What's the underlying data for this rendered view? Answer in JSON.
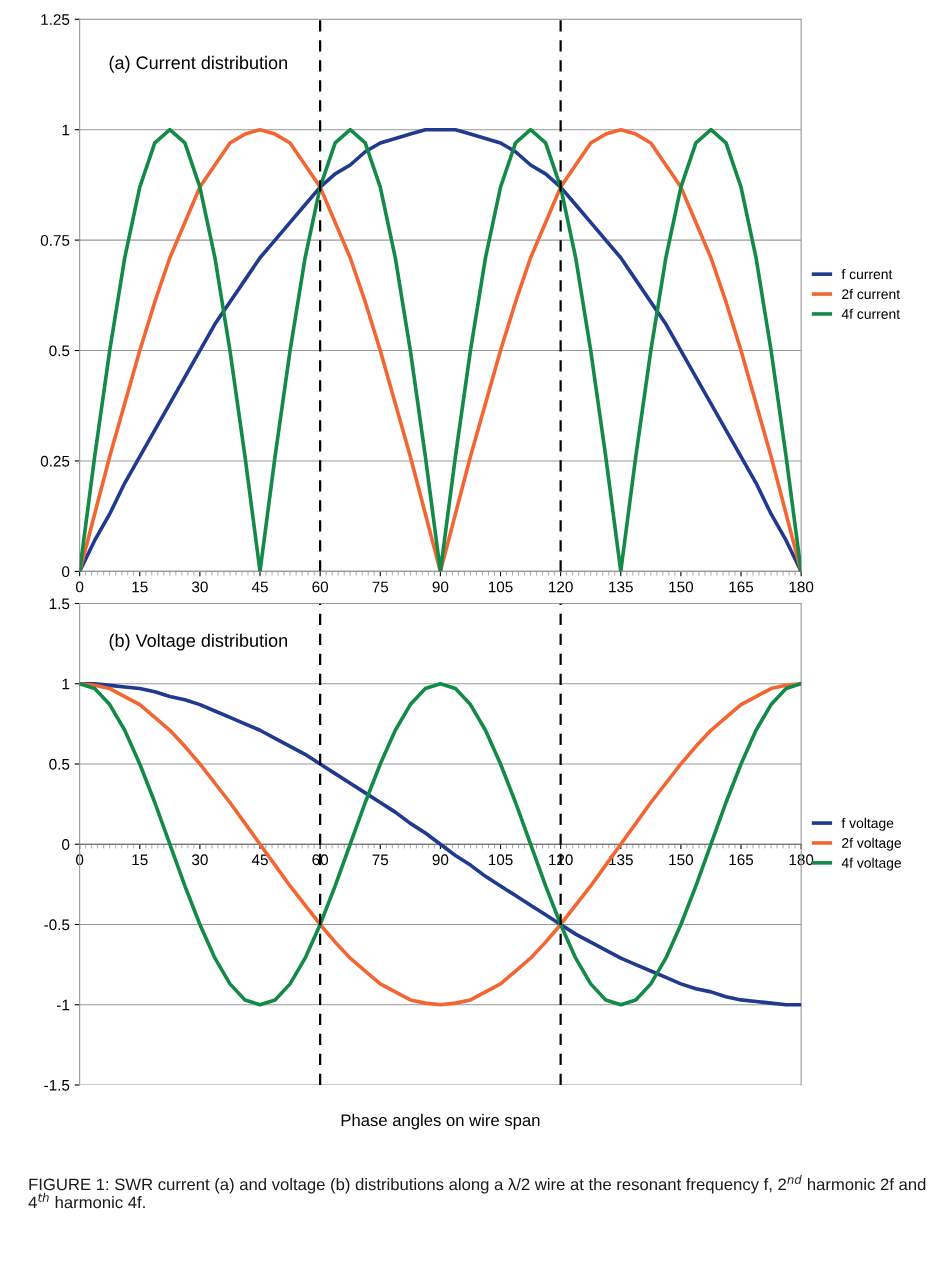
{
  "chart_data": [
    {
      "type": "line",
      "title": "(a) Current distribution",
      "x": [
        0,
        3.75,
        7.5,
        11.25,
        15,
        18.75,
        22.5,
        26.25,
        30,
        33.75,
        37.5,
        41.25,
        45,
        48.75,
        52.5,
        56.25,
        60,
        63.75,
        67.5,
        71.25,
        75,
        78.75,
        82.5,
        86.25,
        90,
        93.75,
        97.5,
        101.25,
        105,
        108.75,
        112.5,
        116.25,
        120,
        123.75,
        127.5,
        131.25,
        135,
        138.75,
        142.5,
        146.25,
        150,
        153.75,
        157.5,
        161.25,
        165,
        168.75,
        172.5,
        176.25,
        180
      ],
      "series": [
        {
          "name": "f current",
          "color": "#1f3a8f",
          "values": [
            0,
            0.07,
            0.13,
            0.2,
            0.26,
            0.32,
            0.38,
            0.44,
            0.5,
            0.56,
            0.61,
            0.66,
            0.71,
            0.75,
            0.79,
            0.83,
            0.87,
            0.9,
            0.92,
            0.95,
            0.97,
            0.98,
            0.99,
            1,
            1,
            1,
            0.99,
            0.98,
            0.97,
            0.95,
            0.92,
            0.9,
            0.87,
            0.83,
            0.79,
            0.75,
            0.71,
            0.66,
            0.61,
            0.56,
            0.5,
            0.44,
            0.38,
            0.32,
            0.26,
            0.2,
            0.13,
            0.07,
            0
          ]
        },
        {
          "name": "2f current",
          "color": "#f26633",
          "values": [
            0,
            0.13,
            0.26,
            0.38,
            0.5,
            0.61,
            0.71,
            0.79,
            0.87,
            0.92,
            0.97,
            0.99,
            1,
            0.99,
            0.97,
            0.92,
            0.87,
            0.79,
            0.71,
            0.61,
            0.5,
            0.38,
            0.26,
            0.13,
            0,
            0.13,
            0.26,
            0.38,
            0.5,
            0.61,
            0.71,
            0.79,
            0.87,
            0.92,
            0.97,
            0.99,
            1,
            0.99,
            0.97,
            0.92,
            0.87,
            0.79,
            0.71,
            0.61,
            0.5,
            0.38,
            0.26,
            0.13,
            0
          ]
        },
        {
          "name": "4f current",
          "color": "#138a48",
          "values": [
            0,
            0.26,
            0.5,
            0.71,
            0.87,
            0.97,
            1,
            0.97,
            0.87,
            0.71,
            0.5,
            0.26,
            0,
            0.26,
            0.5,
            0.71,
            0.87,
            0.97,
            1,
            0.97,
            0.87,
            0.71,
            0.5,
            0.26,
            0,
            0.26,
            0.5,
            0.71,
            0.87,
            0.97,
            1,
            0.97,
            0.87,
            0.71,
            0.5,
            0.26,
            0,
            0.26,
            0.5,
            0.71,
            0.87,
            0.97,
            1,
            0.97,
            0.87,
            0.71,
            0.5,
            0.26,
            0
          ]
        }
      ],
      "xlim": [
        0,
        180
      ],
      "xticks": [
        0,
        15,
        30,
        45,
        60,
        75,
        90,
        105,
        120,
        135,
        150,
        165,
        180
      ],
      "ylim": [
        0,
        1.25
      ],
      "yticks": [
        0,
        0.25,
        0.5,
        0.75,
        1,
        1.25
      ],
      "grid": "y",
      "legend": "right",
      "marker": "none",
      "line_style": "solid",
      "ref_lines": [
        {
          "axis": "x",
          "value": 60,
          "color": "#000000",
          "line_style": "dashed"
        },
        {
          "axis": "x",
          "value": 120,
          "color": "#000000",
          "line_style": "dashed"
        }
      ]
    },
    {
      "type": "line",
      "title": "(b) Voltage distribution",
      "xlabel": "Phase angles on wire span",
      "x": [
        0,
        3.75,
        7.5,
        11.25,
        15,
        18.75,
        22.5,
        26.25,
        30,
        33.75,
        37.5,
        41.25,
        45,
        48.75,
        52.5,
        56.25,
        60,
        63.75,
        67.5,
        71.25,
        75,
        78.75,
        82.5,
        86.25,
        90,
        93.75,
        97.5,
        101.25,
        105,
        108.75,
        112.5,
        116.25,
        120,
        123.75,
        127.5,
        131.25,
        135,
        138.75,
        142.5,
        146.25,
        150,
        153.75,
        157.5,
        161.25,
        165,
        168.75,
        172.5,
        176.25,
        180
      ],
      "series": [
        {
          "name": "f voltage",
          "color": "#1f3a8f",
          "values": [
            1,
            1,
            0.99,
            0.98,
            0.97,
            0.95,
            0.92,
            0.9,
            0.87,
            0.83,
            0.79,
            0.75,
            0.71,
            0.66,
            0.61,
            0.56,
            0.5,
            0.44,
            0.38,
            0.32,
            0.26,
            0.2,
            0.13,
            0.07,
            0,
            -0.07,
            -0.13,
            -0.2,
            -0.26,
            -0.32,
            -0.38,
            -0.44,
            -0.5,
            -0.56,
            -0.61,
            -0.66,
            -0.71,
            -0.75,
            -0.79,
            -0.83,
            -0.87,
            -0.9,
            -0.92,
            -0.95,
            -0.97,
            -0.98,
            -0.99,
            -1,
            -1
          ]
        },
        {
          "name": "2f voltage",
          "color": "#f26633",
          "values": [
            1,
            0.99,
            0.97,
            0.92,
            0.87,
            0.79,
            0.71,
            0.61,
            0.5,
            0.38,
            0.26,
            0.13,
            0,
            -0.13,
            -0.26,
            -0.38,
            -0.5,
            -0.61,
            -0.71,
            -0.79,
            -0.87,
            -0.92,
            -0.97,
            -0.99,
            -1,
            -0.99,
            -0.97,
            -0.92,
            -0.87,
            -0.79,
            -0.71,
            -0.61,
            -0.5,
            -0.38,
            -0.26,
            -0.13,
            0,
            0.13,
            0.26,
            0.38,
            0.5,
            0.61,
            0.71,
            0.79,
            0.87,
            0.92,
            0.97,
            0.99,
            1
          ]
        },
        {
          "name": "4f voltage",
          "color": "#138a48",
          "values": [
            1,
            0.97,
            0.87,
            0.71,
            0.5,
            0.26,
            0,
            -0.26,
            -0.5,
            -0.71,
            -0.87,
            -0.97,
            -1,
            -0.97,
            -0.87,
            -0.71,
            -0.5,
            -0.26,
            0,
            0.26,
            0.5,
            0.71,
            0.87,
            0.97,
            1,
            0.97,
            0.87,
            0.71,
            0.5,
            0.26,
            0,
            -0.26,
            -0.5,
            -0.71,
            -0.87,
            -0.97,
            -1,
            -0.97,
            -0.87,
            -0.71,
            -0.5,
            -0.26,
            0,
            0.26,
            0.5,
            0.71,
            0.87,
            0.97,
            1
          ]
        }
      ],
      "xlim": [
        0,
        180
      ],
      "xticks": [
        0,
        15,
        30,
        45,
        60,
        75,
        90,
        105,
        120,
        135,
        150,
        165,
        180
      ],
      "ylim": [
        -1.5,
        1.5
      ],
      "yticks": [
        -1.5,
        -1,
        -0.5,
        0,
        0.5,
        1,
        1.5
      ],
      "grid": "y",
      "legend": "right",
      "marker": "none",
      "line_style": "solid",
      "ref_lines": [
        {
          "axis": "x",
          "value": 60,
          "color": "#000000",
          "line_style": "dashed"
        },
        {
          "axis": "x",
          "value": 120,
          "color": "#000000",
          "line_style": "dashed"
        }
      ],
      "annotations": [
        "FIGURE 1: SWR current (a) and voltage (b) distributions along a λ/2 wire at the resonant frequency f, 2$^{nd}$ harmonic 2f and 4$^{th}$ harmonic 4f."
      ]
    }
  ]
}
